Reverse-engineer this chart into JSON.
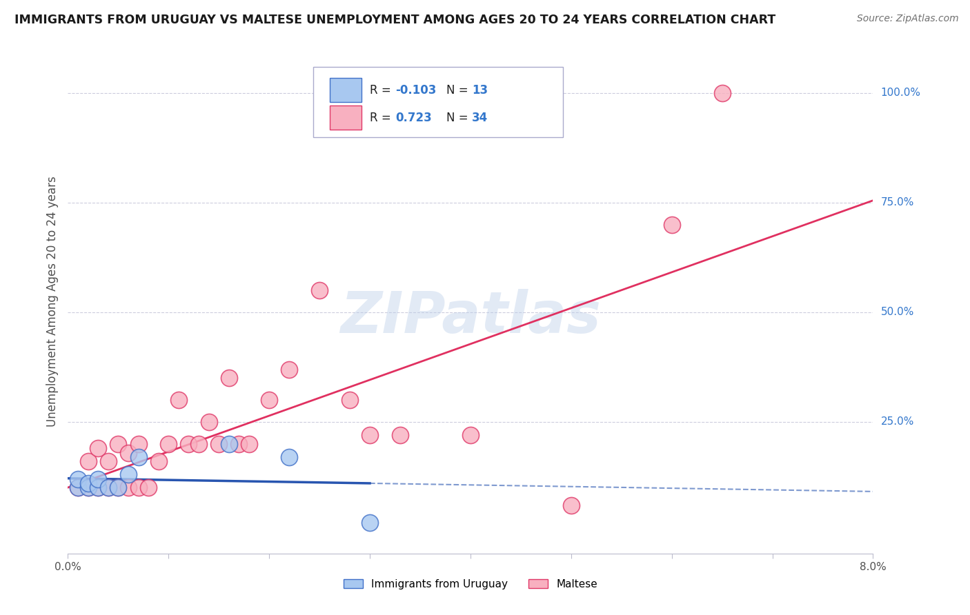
{
  "title": "IMMIGRANTS FROM URUGUAY VS MALTESE UNEMPLOYMENT AMONG AGES 20 TO 24 YEARS CORRELATION CHART",
  "source": "Source: ZipAtlas.com",
  "ylabel": "Unemployment Among Ages 20 to 24 years",
  "xmin": 0.0,
  "xmax": 0.08,
  "ymin": -0.05,
  "ymax": 1.1,
  "blue_R": -0.103,
  "blue_N": 13,
  "pink_R": 0.723,
  "pink_N": 34,
  "blue_color": "#a8c8f0",
  "pink_color": "#f8b0c0",
  "blue_edge_color": "#4070c8",
  "pink_edge_color": "#e03868",
  "blue_line_color": "#2855b0",
  "pink_line_color": "#e03060",
  "blue_scatter_x": [
    0.001,
    0.001,
    0.002,
    0.002,
    0.003,
    0.003,
    0.004,
    0.005,
    0.006,
    0.007,
    0.016,
    0.022,
    0.03
  ],
  "blue_scatter_y": [
    0.1,
    0.12,
    0.1,
    0.11,
    0.1,
    0.12,
    0.1,
    0.1,
    0.13,
    0.17,
    0.2,
    0.17,
    0.02
  ],
  "pink_scatter_x": [
    0.001,
    0.002,
    0.002,
    0.003,
    0.003,
    0.004,
    0.004,
    0.005,
    0.005,
    0.006,
    0.006,
    0.007,
    0.007,
    0.008,
    0.009,
    0.01,
    0.011,
    0.012,
    0.013,
    0.014,
    0.015,
    0.016,
    0.017,
    0.018,
    0.02,
    0.022,
    0.025,
    0.028,
    0.03,
    0.033,
    0.04,
    0.05,
    0.06,
    0.065
  ],
  "pink_scatter_y": [
    0.1,
    0.1,
    0.16,
    0.1,
    0.19,
    0.1,
    0.16,
    0.1,
    0.2,
    0.1,
    0.18,
    0.1,
    0.2,
    0.1,
    0.16,
    0.2,
    0.3,
    0.2,
    0.2,
    0.25,
    0.2,
    0.35,
    0.2,
    0.2,
    0.3,
    0.37,
    0.55,
    0.3,
    0.22,
    0.22,
    0.22,
    0.06,
    0.7,
    1.0
  ],
  "watermark": "ZIPatlas",
  "legend_label_blue": "Immigrants from Uruguay",
  "legend_label_pink": "Maltese",
  "background_color": "#ffffff",
  "grid_color": "#ccccdd",
  "title_color": "#1a1a1a",
  "source_color": "#707070",
  "axis_label_color": "#505050",
  "right_tick_color": "#3377cc"
}
